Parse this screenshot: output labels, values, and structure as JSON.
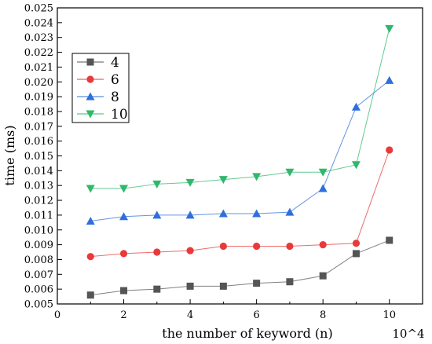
{
  "chart_data": {
    "type": "line",
    "xlabel": "the number of keyword (n)",
    "ylabel": "time (ms)",
    "x_multiplier_label": "10^4",
    "xlim": [
      0,
      11
    ],
    "ylim": [
      0.005,
      0.025
    ],
    "xticks": [
      0,
      2,
      4,
      6,
      8,
      10
    ],
    "yticks": [
      0.005,
      0.006,
      0.007,
      0.008,
      0.009,
      0.01,
      0.011,
      0.012,
      0.013,
      0.014,
      0.015,
      0.016,
      0.017,
      0.018,
      0.019,
      0.02,
      0.021,
      0.022,
      0.023,
      0.024,
      0.025
    ],
    "ytick_labels": [
      "0.005",
      "0.006",
      "0.007",
      "0.008",
      "0.009",
      "0.010",
      "0.011",
      "0.012",
      "0.013",
      "0.014",
      "0.015",
      "0.016",
      "0.017",
      "0.018",
      "0.019",
      "0.020",
      "0.021",
      "0.022",
      "0.023",
      "0.024",
      "0.025"
    ],
    "grid": false,
    "legend_position": "top-left",
    "x": [
      1,
      2,
      3,
      4,
      5,
      6,
      7,
      8,
      9,
      10
    ],
    "series": [
      {
        "name": "4",
        "color": "#555555",
        "marker": "square",
        "values": [
          0.0056,
          0.0059,
          0.006,
          0.0062,
          0.0062,
          0.0064,
          0.0065,
          0.0069,
          0.0084,
          0.0093
        ]
      },
      {
        "name": "6",
        "color": "#e83a3a",
        "marker": "circle",
        "values": [
          0.0082,
          0.0084,
          0.0085,
          0.0086,
          0.0089,
          0.0089,
          0.0089,
          0.009,
          0.0091,
          0.0154
        ]
      },
      {
        "name": "8",
        "color": "#2f6fdc",
        "marker": "triangle-up",
        "values": [
          0.0106,
          0.0109,
          0.011,
          0.011,
          0.0111,
          0.0111,
          0.0112,
          0.0128,
          0.0183,
          0.0201
        ]
      },
      {
        "name": "10",
        "color": "#2fb86b",
        "marker": "triangle-down",
        "values": [
          0.0128,
          0.0128,
          0.0131,
          0.0132,
          0.0134,
          0.0136,
          0.0139,
          0.0139,
          0.0144,
          0.0236
        ]
      }
    ]
  }
}
